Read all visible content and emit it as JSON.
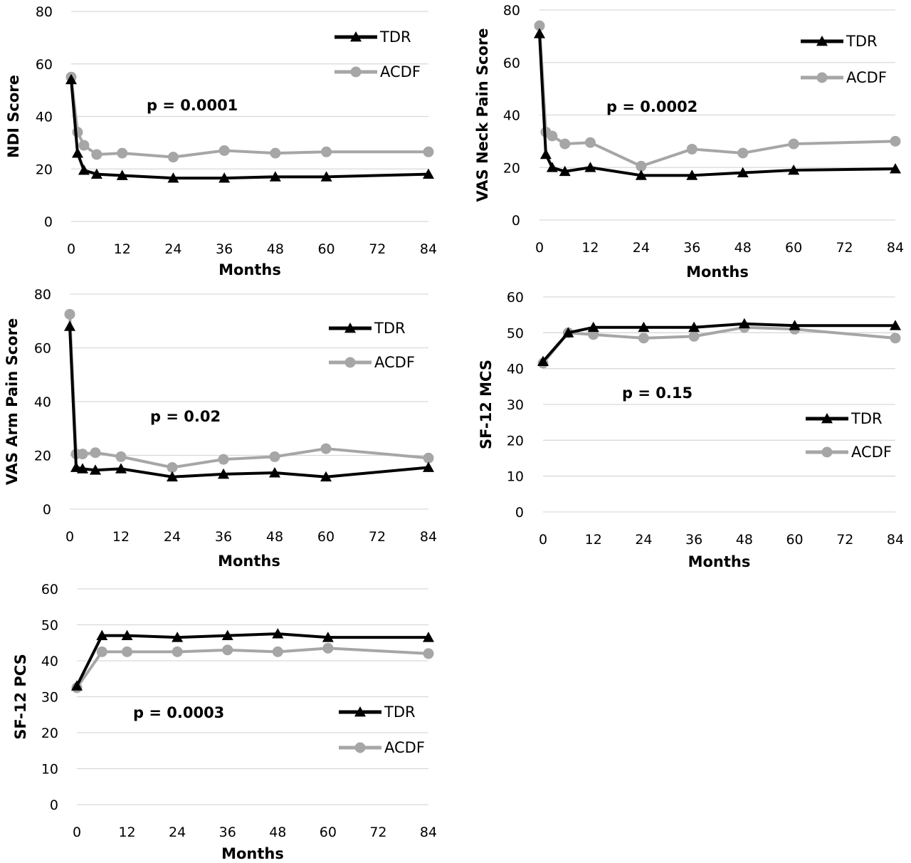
{
  "colors": {
    "TDR": "#000000",
    "ACDF": "#a6a6a6",
    "grid": "#d9d9d9"
  },
  "chart_data": [
    {
      "type": "line",
      "ylabel": "NDI Score",
      "xlabel": "Months",
      "xlim": [
        0,
        84
      ],
      "ylim": [
        0,
        80
      ],
      "xticks": [
        "0",
        "12",
        "24",
        "36",
        "48",
        "60",
        "72",
        "84"
      ],
      "yticks": [
        "0",
        "20",
        "40",
        "60",
        "80"
      ],
      "grid": true,
      "legend_position": "top-right",
      "annotation": {
        "prefix": "p = ",
        "value": "0.0001"
      },
      "series": [
        {
          "name": "TDR",
          "marker": "triangle",
          "x": [
            0,
            1.5,
            3,
            6,
            12,
            24,
            36,
            48,
            60,
            84
          ],
          "y": [
            54,
            26,
            19.5,
            18,
            17.5,
            16.5,
            16.5,
            17,
            17,
            18
          ]
        },
        {
          "name": "ACDF",
          "marker": "circle",
          "x": [
            0,
            1.5,
            3,
            6,
            12,
            24,
            36,
            48,
            60,
            84
          ],
          "y": [
            55,
            34,
            29,
            25.5,
            26,
            24.5,
            27,
            26,
            26.5,
            26.5
          ]
        }
      ]
    },
    {
      "type": "line",
      "ylabel": "VAS Neck Pain Score",
      "xlabel": "Months",
      "xlim": [
        0,
        84
      ],
      "ylim": [
        0,
        80
      ],
      "xticks": [
        "0",
        "12",
        "24",
        "36",
        "48",
        "60",
        "72",
        "84"
      ],
      "yticks": [
        "0",
        "20",
        "40",
        "60",
        "80"
      ],
      "grid": true,
      "legend_position": "top-right",
      "annotation": {
        "prefix": "p = ",
        "value": "0.0002"
      },
      "series": [
        {
          "name": "TDR",
          "marker": "triangle",
          "x": [
            0,
            1.5,
            3,
            6,
            12,
            24,
            36,
            48,
            60,
            84
          ],
          "y": [
            71,
            25,
            20,
            18.5,
            20,
            17,
            17,
            18,
            19,
            19.5
          ]
        },
        {
          "name": "ACDF",
          "marker": "circle",
          "x": [
            0,
            1.5,
            3,
            6,
            12,
            24,
            36,
            48,
            60,
            84
          ],
          "y": [
            74,
            33.5,
            32,
            29,
            29.5,
            20.5,
            27,
            25.5,
            29,
            30
          ]
        }
      ]
    },
    {
      "type": "line",
      "ylabel": "VAS Arm Pain Score",
      "xlabel": "Months",
      "xlim": [
        0,
        84
      ],
      "ylim": [
        0,
        80
      ],
      "xticks": [
        "0",
        "12",
        "24",
        "36",
        "48",
        "60",
        "72",
        "84"
      ],
      "yticks": [
        "0",
        "20",
        "40",
        "60",
        "80"
      ],
      "grid": true,
      "legend_position": "top-right",
      "annotation": {
        "prefix": "p = ",
        "value": "0.02"
      },
      "series": [
        {
          "name": "TDR",
          "marker": "triangle",
          "x": [
            0,
            1.5,
            3,
            6,
            12,
            24,
            36,
            48,
            60,
            84
          ],
          "y": [
            68,
            15.5,
            15,
            14.5,
            15,
            12,
            13,
            13.5,
            12,
            15.5
          ]
        },
        {
          "name": "ACDF",
          "marker": "circle",
          "x": [
            0,
            1.5,
            3,
            6,
            12,
            24,
            36,
            48,
            60,
            84
          ],
          "y": [
            72.5,
            20.5,
            20.5,
            21,
            19.5,
            15.5,
            18.5,
            19.5,
            22.5,
            19
          ]
        }
      ]
    },
    {
      "type": "line",
      "ylabel": "SF-12 MCS",
      "xlabel": "Months",
      "xlim": [
        0,
        84
      ],
      "ylim": [
        0,
        60
      ],
      "xticks": [
        "0",
        "12",
        "24",
        "36",
        "48",
        "60",
        "72",
        "84"
      ],
      "yticks": [
        "0",
        "10",
        "20",
        "30",
        "40",
        "50",
        "60"
      ],
      "grid": true,
      "legend_position": "right",
      "annotation": {
        "prefix": "p = ",
        "value": "0.15"
      },
      "series": [
        {
          "name": "TDR",
          "marker": "triangle",
          "x": [
            0,
            6,
            12,
            24,
            36,
            48,
            60,
            84
          ],
          "y": [
            42,
            50,
            51.5,
            51.5,
            51.5,
            52.5,
            52,
            52
          ]
        },
        {
          "name": "ACDF",
          "marker": "circle",
          "x": [
            0,
            6,
            12,
            24,
            36,
            48,
            60,
            84
          ],
          "y": [
            41.5,
            50,
            49.5,
            48.5,
            49,
            51.5,
            51,
            48.5
          ]
        }
      ]
    },
    {
      "type": "line",
      "ylabel": "SF-12 PCS",
      "xlabel": "Months",
      "xlim": [
        0,
        84
      ],
      "ylim": [
        0,
        60
      ],
      "xticks": [
        "0",
        "12",
        "24",
        "36",
        "48",
        "60",
        "72",
        "84"
      ],
      "yticks": [
        "0",
        "10",
        "20",
        "30",
        "40",
        "50",
        "60"
      ],
      "grid": true,
      "legend_position": "right",
      "annotation": {
        "prefix": "p = ",
        "value": "0.0003"
      },
      "series": [
        {
          "name": "TDR",
          "marker": "triangle",
          "x": [
            0,
            6,
            12,
            24,
            36,
            48,
            60,
            84
          ],
          "y": [
            33,
            47,
            47,
            46.5,
            47,
            47.5,
            46.5,
            46.5
          ]
        },
        {
          "name": "ACDF",
          "marker": "circle",
          "x": [
            0,
            6,
            12,
            24,
            36,
            48,
            60,
            84
          ],
          "y": [
            32.5,
            42.5,
            42.5,
            42.5,
            43,
            42.5,
            43.5,
            42
          ]
        }
      ]
    }
  ]
}
